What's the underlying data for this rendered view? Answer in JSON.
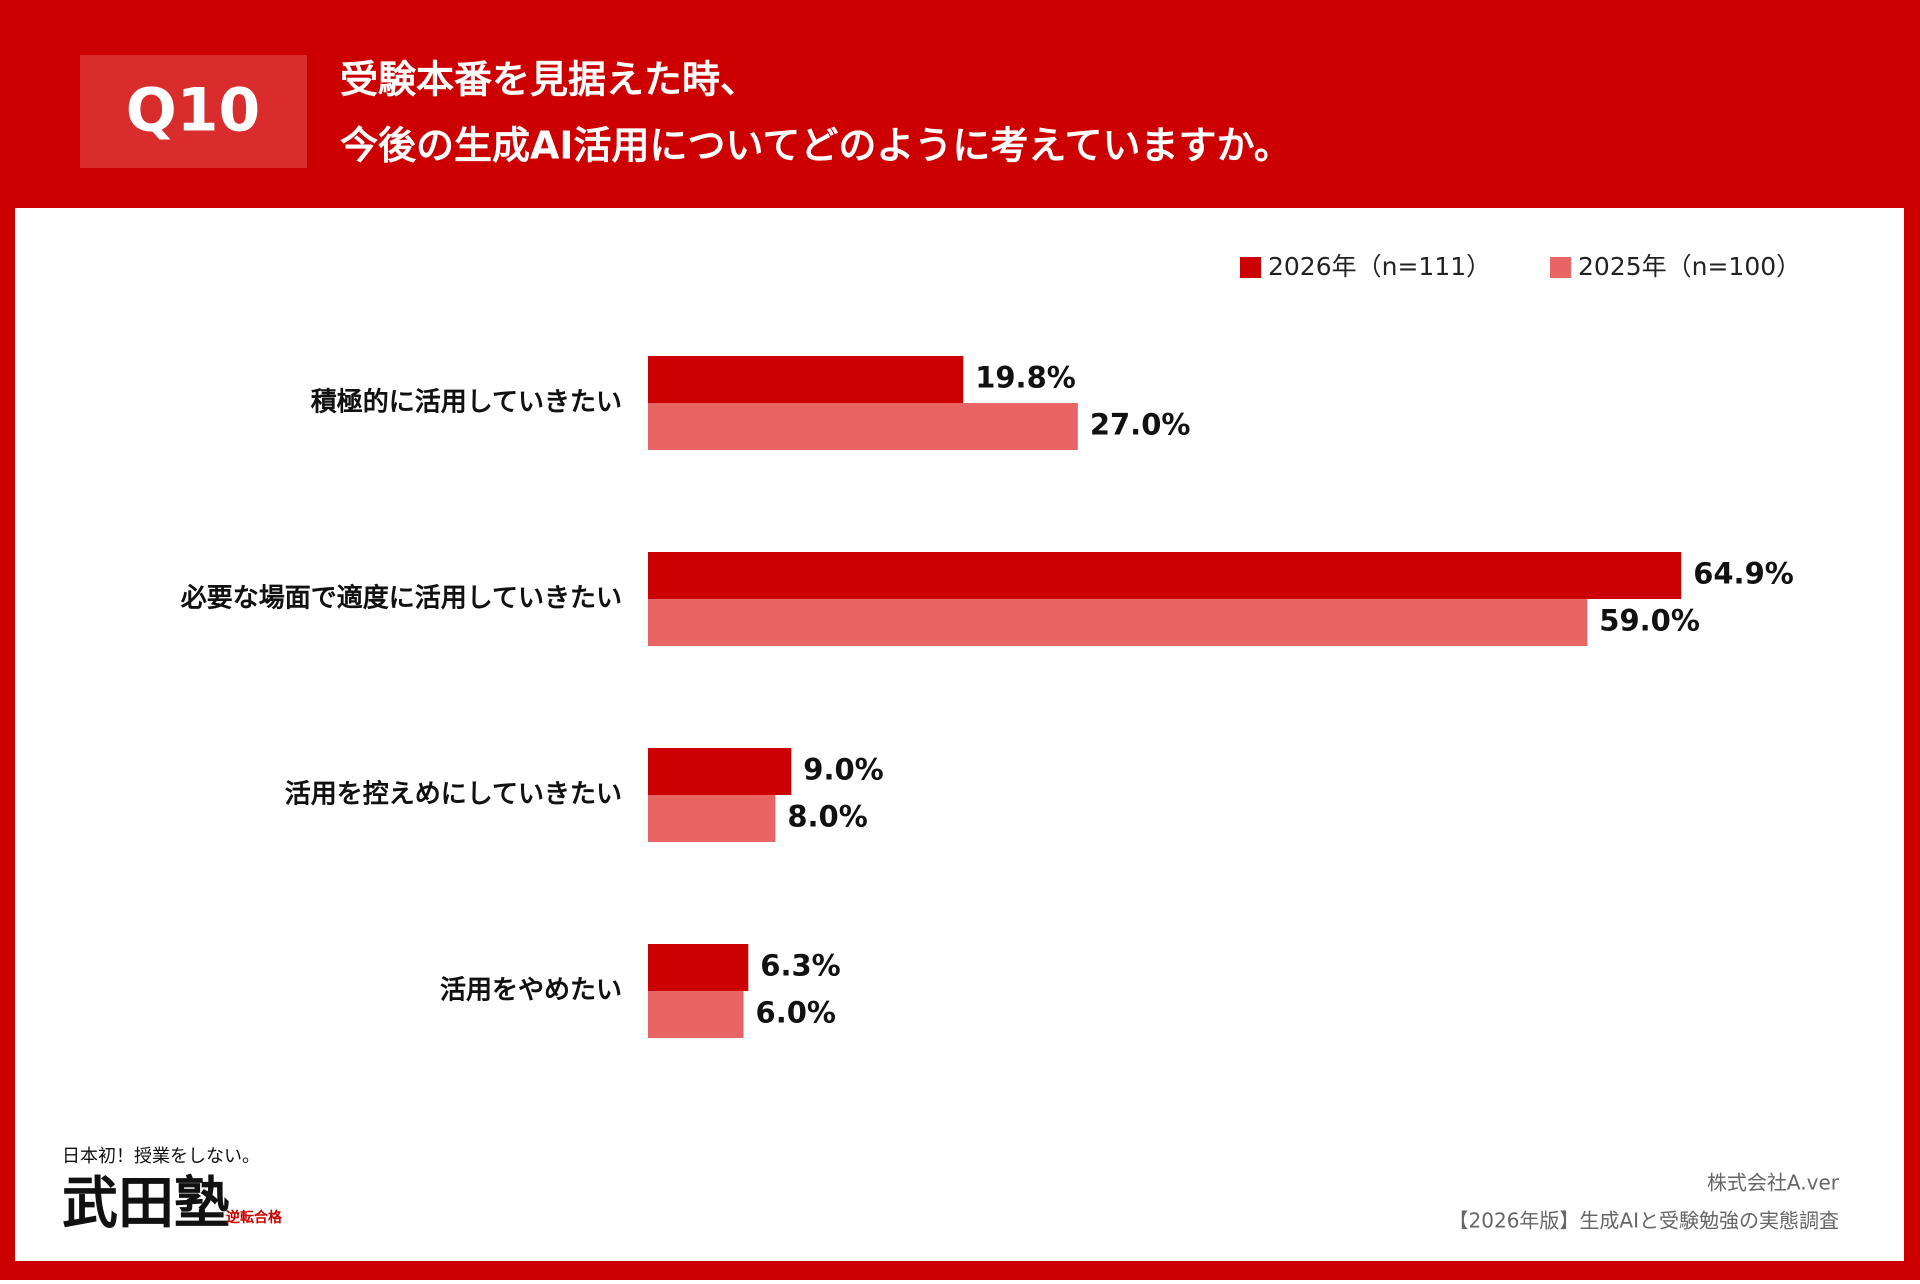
{
  "badge": "Q10",
  "chart_data": {
    "type": "bar",
    "orientation": "horizontal",
    "title": [
      "受験本番を見据えた時、",
      "今後の生成AI活用についてどのように考えていますか。"
    ],
    "categories": [
      "積極的に活用していきたい",
      "必要な場面で適度に活用していきたい",
      "活用を控えめにしていきたい",
      "活用をやめたい"
    ],
    "series": [
      {
        "name": "2026年（n=111）",
        "color": "#cc0000",
        "values": [
          19.8,
          64.9,
          9.0,
          6.3
        ],
        "value_labels": [
          "19.8%",
          "64.9%",
          "9.0%",
          "6.3%"
        ]
      },
      {
        "name": "2025年（n=100）",
        "color": "#e96565",
        "values": [
          27.0,
          59.0,
          8.0,
          6.0
        ],
        "value_labels": [
          "27.0%",
          "59.0%",
          "8.0%",
          "6.0%"
        ]
      }
    ],
    "legend": "top-right"
  },
  "logo": {
    "tagline": "日本初！授業をしない。",
    "name": "武田塾",
    "stamp": "逆転合格"
  },
  "footer": {
    "company": "株式会社A.ver",
    "source": "【2026年版】生成AIと受験勉強の実態調査"
  }
}
